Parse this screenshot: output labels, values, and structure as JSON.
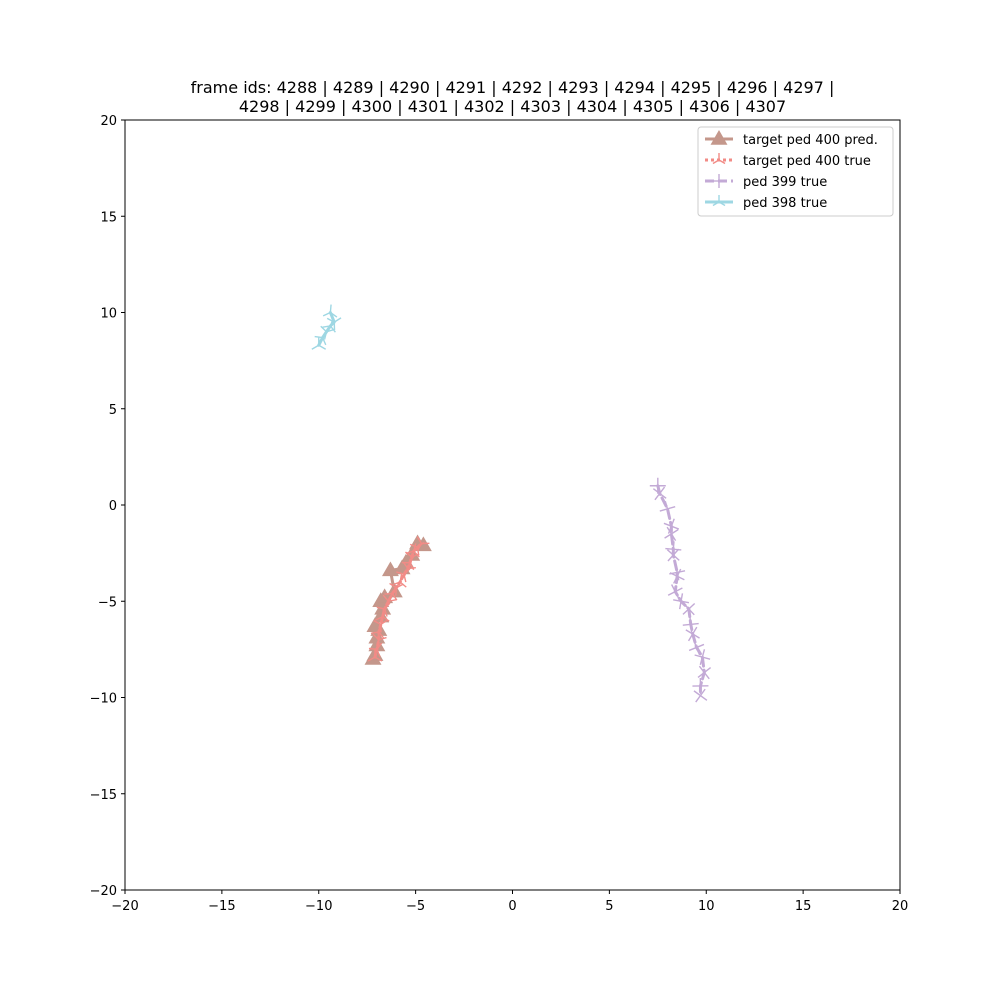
{
  "chart_data": {
    "type": "line",
    "title_lines": [
      "frame ids: 4288 | 4289 | 4290 | 4291 | 4292 | 4293 | 4294 | 4295 | 4296 | 4297 |",
      "4298 | 4299 | 4300 | 4301 | 4302 | 4303 | 4304 | 4305 | 4306 | 4307"
    ],
    "xlabel": "",
    "ylabel": "",
    "xlim": [
      -20,
      20
    ],
    "ylim": [
      -20,
      20
    ],
    "xticks": [
      -20,
      -15,
      -10,
      -5,
      0,
      5,
      10,
      15,
      20
    ],
    "yticks": [
      -20,
      -15,
      -10,
      -5,
      0,
      5,
      10,
      15,
      20
    ],
    "xtick_labels": [
      "−20",
      "−15",
      "−10",
      "−5",
      "0",
      "5",
      "10",
      "15",
      "20"
    ],
    "ytick_labels": [
      "−20",
      "−15",
      "−10",
      "−5",
      "0",
      "5",
      "10",
      "15",
      "20"
    ],
    "grid": false,
    "legend_position": "top-right",
    "series": [
      {
        "name": "target ped 400 pred.",
        "color": "#c4978b",
        "marker": "triangle",
        "linestyle": "solid",
        "x": [
          -7.2,
          -7.1,
          -7.0,
          -7.0,
          -6.9,
          -7.1,
          -6.8,
          -6.7,
          -6.8,
          -6.6,
          -6.1,
          -6.3,
          -5.7,
          -5.5,
          -5.2,
          -4.9,
          -4.6
        ],
        "y": [
          -8.0,
          -7.8,
          -7.3,
          -6.9,
          -6.5,
          -6.3,
          -5.8,
          -5.4,
          -5.0,
          -4.8,
          -4.5,
          -3.4,
          -3.3,
          -3.0,
          -2.6,
          -2.0,
          -2.1
        ]
      },
      {
        "name": "target ped 400 true",
        "color": "#f28b86",
        "marker": "tri",
        "linestyle": "dotted",
        "x": [
          -7.1,
          -7.0,
          -6.9,
          -6.9,
          -6.8,
          -6.7,
          -6.6,
          -6.4,
          -6.2,
          -6.0,
          -5.8,
          -5.6,
          -5.4,
          -5.3,
          -5.2,
          -5.1,
          -4.9,
          -4.7
        ],
        "y": [
          -7.9,
          -7.5,
          -7.0,
          -6.6,
          -6.2,
          -5.8,
          -5.4,
          -5.0,
          -4.6,
          -4.3,
          -4.0,
          -3.6,
          -3.3,
          -3.0,
          -2.7,
          -2.4,
          -2.2,
          -2.0
        ]
      },
      {
        "name": "ped 399 true",
        "color": "#c3aad6",
        "marker": "plus",
        "linestyle": "dashed",
        "x": [
          7.5,
          7.6,
          8.0,
          8.2,
          8.2,
          8.3,
          8.3,
          8.5,
          8.5,
          8.4,
          8.7,
          9.1,
          9.2,
          9.3,
          9.5,
          9.8,
          9.9,
          9.7,
          9.7
        ],
        "y": [
          1.0,
          0.6,
          -0.2,
          -1.1,
          -1.5,
          -2.3,
          -2.6,
          -3.5,
          -3.7,
          -4.5,
          -5.0,
          -5.4,
          -6.2,
          -6.7,
          -7.4,
          -7.9,
          -8.7,
          -9.4,
          -9.9
        ]
      },
      {
        "name": "ped 398 true",
        "color": "#9ed7e3",
        "marker": "tri",
        "linestyle": "solid",
        "x": [
          -10.0,
          -9.8,
          -9.6,
          -9.4,
          -9.2,
          -9.4
        ],
        "y": [
          8.3,
          8.7,
          9.0,
          9.3,
          9.5,
          10.0
        ]
      }
    ]
  }
}
